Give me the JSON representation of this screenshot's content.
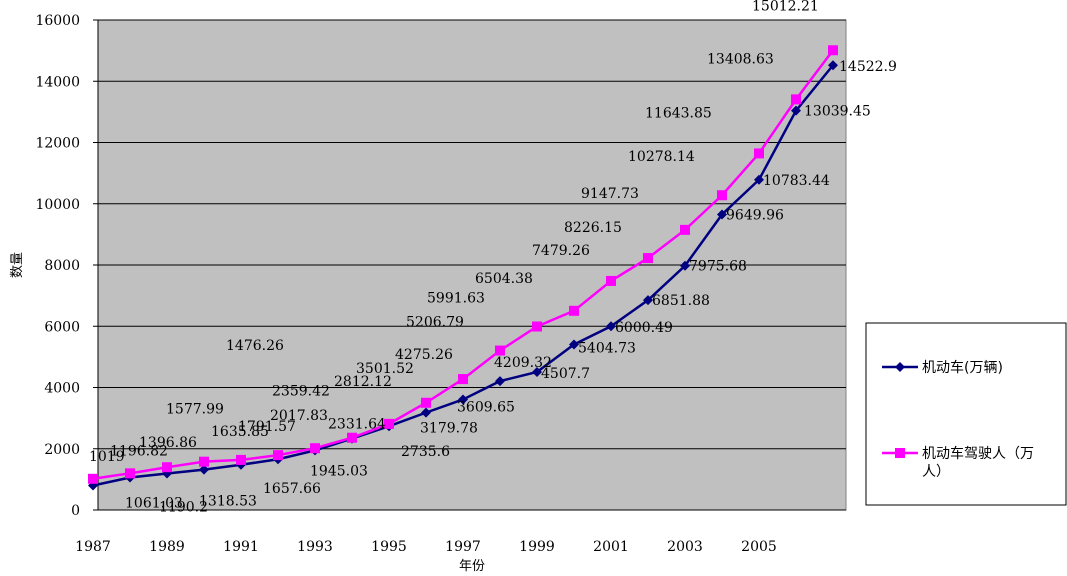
{
  "chart_data": {
    "type": "line",
    "xlabel": "年份",
    "ylabel": "数量",
    "ylim": [
      0,
      16000
    ],
    "yticks": [
      0,
      2000,
      4000,
      6000,
      8000,
      10000,
      12000,
      14000,
      16000
    ],
    "xlim": [
      1987,
      2007
    ],
    "xticks": [
      1987,
      1989,
      1991,
      1993,
      1995,
      1997,
      1999,
      2001,
      2003,
      2005
    ],
    "grid": true,
    "legend": "right",
    "colors": {
      "plot_bg": "#c0c0c0",
      "vehicles": "#000080",
      "drivers": "#ff00ff"
    },
    "series": [
      {
        "name": "机动车(万辆)",
        "marker": "diamond",
        "x": [
          1987,
          1988,
          1989,
          1990,
          1991,
          1992,
          1993,
          1994,
          1995,
          1996,
          1997,
          1998,
          1999,
          2000,
          2001,
          2002,
          2003,
          2004,
          2005,
          2006,
          2007
        ],
        "values": [
          800,
          1061.03,
          1190.2,
          1318.53,
          1476.26,
          1657.66,
          1945.03,
          2331.64,
          2735.6,
          3179.78,
          3609.65,
          4209.32,
          4507.7,
          5404.73,
          6000.49,
          6851.88,
          7975.68,
          9649.96,
          10783.44,
          13039.45,
          14522.9
        ],
        "labels": [
          "",
          "1061.03",
          "1190.2",
          "1318.53",
          "1476.26",
          "1657.66",
          "1945.03",
          "2331.64",
          "2735.6",
          "3179.78",
          "3609.65",
          "4209.32",
          "4507.7",
          "5404.73",
          "6000.49",
          "6851.88",
          "7975.68",
          "9649.96",
          "10783.44",
          "13039.45",
          "14522.9"
        ]
      },
      {
        "name": "机动车驾驶人（万人）",
        "marker": "square",
        "x": [
          1987,
          1988,
          1989,
          1990,
          1991,
          1992,
          1993,
          1994,
          1995,
          1996,
          1997,
          1998,
          1999,
          2000,
          2001,
          2002,
          2003,
          2004,
          2005,
          2006,
          2007
        ],
        "values": [
          1019,
          1196.82,
          1396.86,
          1577.99,
          1635.85,
          1791.57,
          2017.83,
          2359.42,
          2812.12,
          3501.52,
          4275.26,
          5206.79,
          5991.63,
          6504.38,
          7479.26,
          8226.15,
          9147.73,
          10278.14,
          11643.85,
          13408.63,
          15012.21
        ],
        "labels": [
          "1019",
          "1196.82",
          "1396.86",
          "1577.99",
          "1635.85",
          "1791.57",
          "2017.83",
          "2359.42",
          "2812.12",
          "3501.52",
          "4275.26",
          "5206.79",
          "5991.63",
          "6504.38",
          "7479.26",
          "8226.15",
          "9147.73",
          "10278.14",
          "11643.85",
          "13408.63",
          "15012.21"
        ]
      }
    ]
  }
}
